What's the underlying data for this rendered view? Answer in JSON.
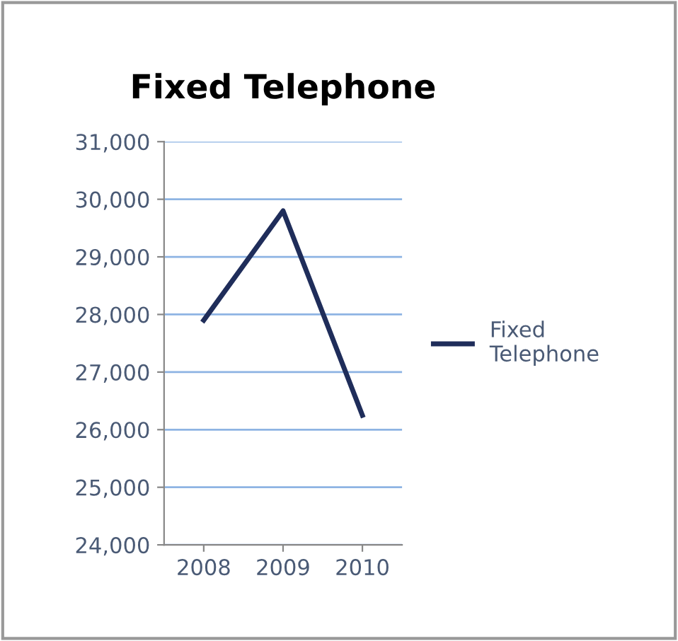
{
  "chart_data": {
    "type": "line",
    "title": "Fixed Telephone",
    "categories": [
      "2008",
      "2009",
      "2010"
    ],
    "series": [
      {
        "name": "Fixed Telephone",
        "color": "#1f2d5a",
        "values": [
          27900,
          29800,
          26250
        ]
      }
    ],
    "ylim": [
      24000,
      31000
    ],
    "yticks": [
      {
        "value": 24000,
        "label": "24,000"
      },
      {
        "value": 25000,
        "label": "25,000"
      },
      {
        "value": 26000,
        "label": "26,000"
      },
      {
        "value": 27000,
        "label": "27,000"
      },
      {
        "value": 28000,
        "label": "28,000"
      },
      {
        "value": 29000,
        "label": "29,000"
      },
      {
        "value": 30000,
        "label": "30,000"
      },
      {
        "value": 31000,
        "label": "31,000"
      }
    ],
    "grid": "y",
    "legend": "right",
    "marker": "none",
    "line_style": "solid"
  }
}
